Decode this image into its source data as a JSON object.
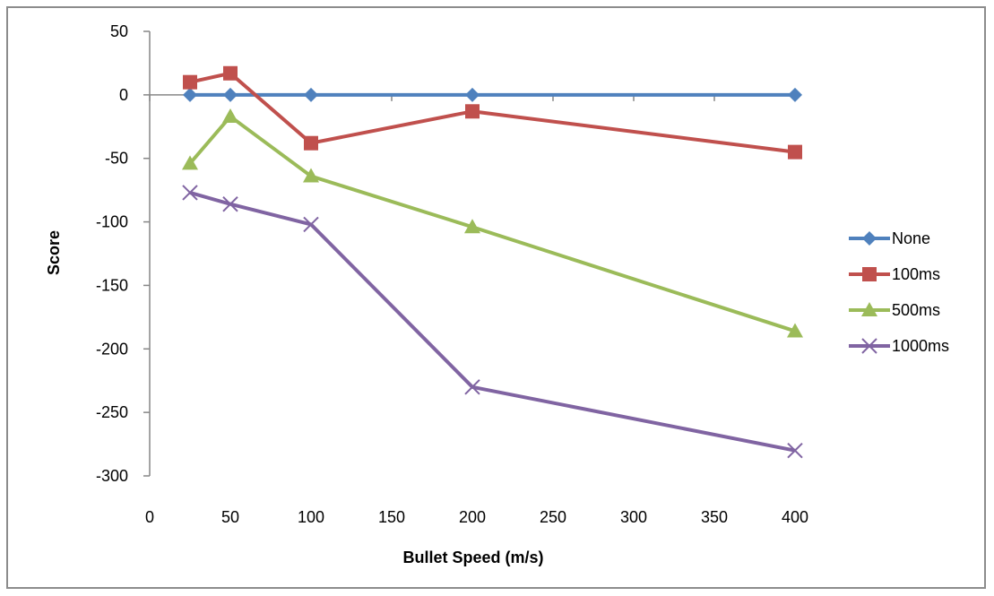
{
  "chart_data": {
    "type": "line",
    "title": "",
    "xlabel": "Bullet Speed (m/s)",
    "ylabel": "Score",
    "xlim": [
      0,
      400
    ],
    "ylim": [
      -300,
      50
    ],
    "xticks": [
      0,
      50,
      100,
      150,
      200,
      250,
      300,
      350,
      400
    ],
    "yticks": [
      50,
      0,
      -50,
      -100,
      -150,
      -200,
      -250,
      -300
    ],
    "x": [
      25,
      50,
      100,
      200,
      400
    ],
    "grid": false,
    "legend_position": "right",
    "series": [
      {
        "name": "None",
        "color": "#4f81bd",
        "marker": "diamond",
        "values": [
          0,
          0,
          0,
          0,
          0
        ]
      },
      {
        "name": "100ms",
        "color": "#c0504d",
        "marker": "square",
        "values": [
          10,
          17,
          -38,
          -13,
          -45
        ]
      },
      {
        "name": "500ms",
        "color": "#9bbb59",
        "marker": "triangle",
        "values": [
          -54,
          -17,
          -64,
          -104,
          -186
        ]
      },
      {
        "name": "1000ms",
        "color": "#8064a2",
        "marker": "x",
        "values": [
          -77,
          -86,
          -102,
          -230,
          -280
        ]
      }
    ]
  }
}
